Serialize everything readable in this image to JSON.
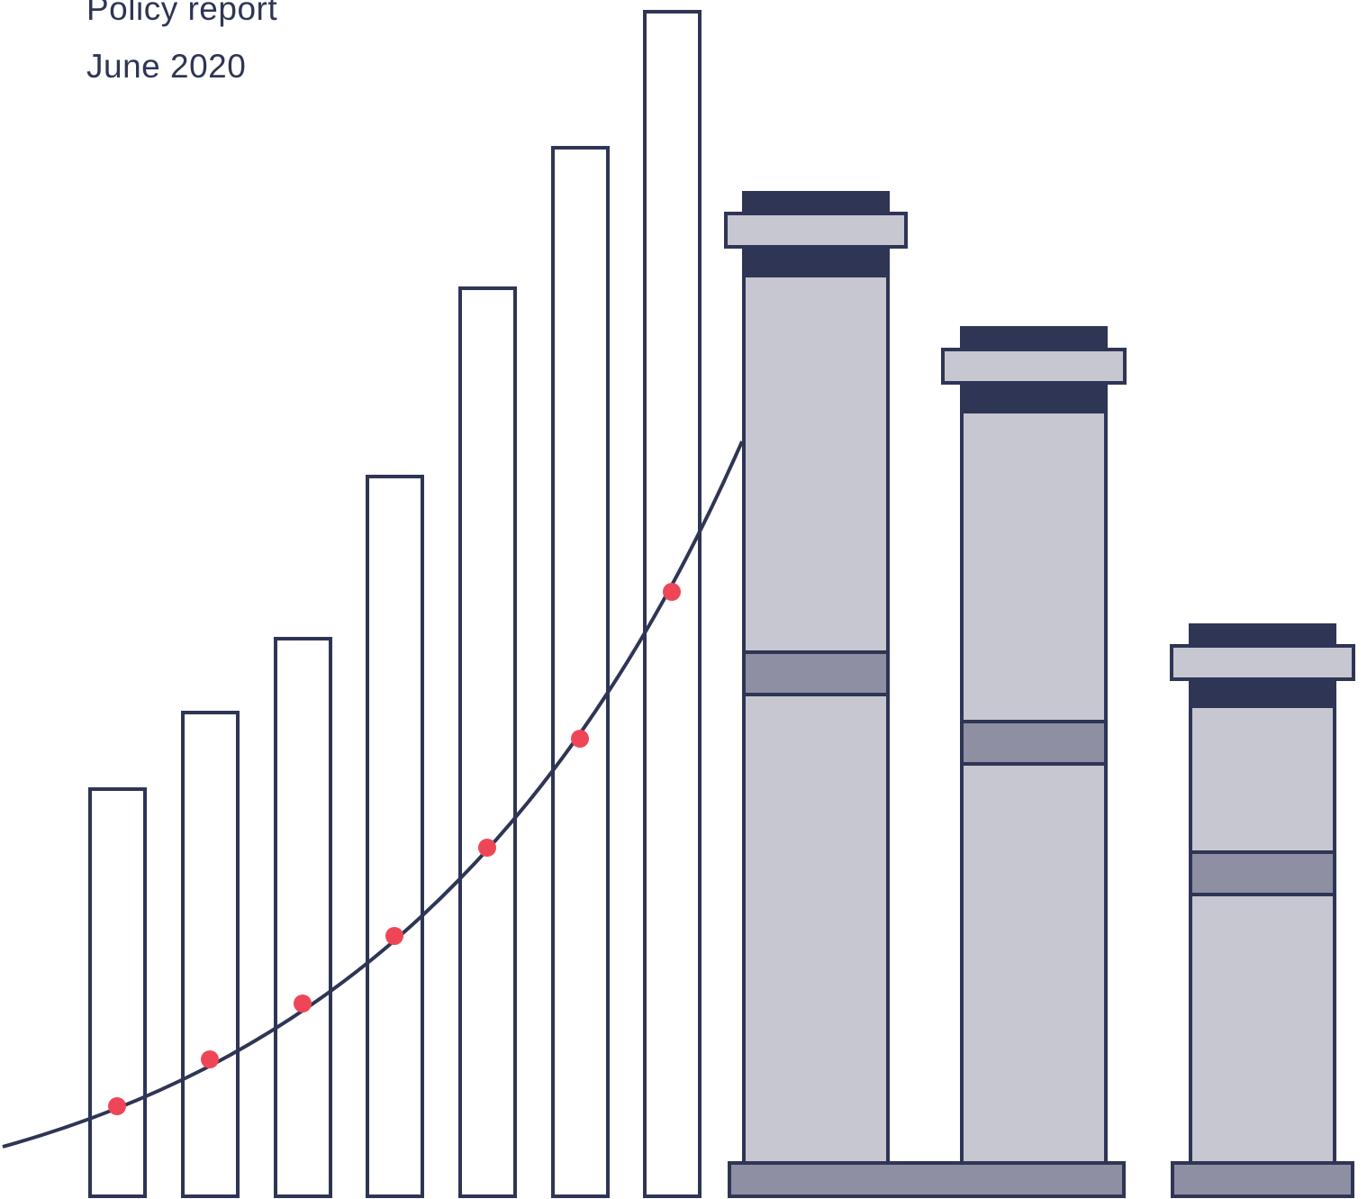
{
  "header": {
    "line1": "Policy report",
    "line2": "June 2020"
  },
  "colors": {
    "navy": "#2f3555",
    "light_grey": "#c7c7d1",
    "mid_grey": "#8e8fa3",
    "dot_red": "#ef4657",
    "background": "#ffffff"
  },
  "illustration": {
    "description_icon": "bar-chart-with-growth-curve-and-chimney-icon",
    "outline_bar_count": 7,
    "curve_point_count": 7,
    "chimney_count": 3
  }
}
